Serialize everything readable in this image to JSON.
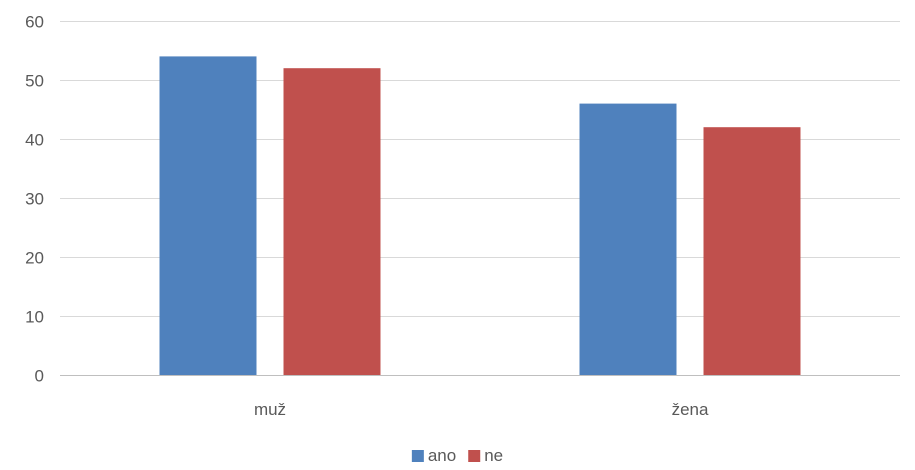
{
  "chart_data": {
    "type": "bar",
    "categories": [
      "muž",
      "žena"
    ],
    "series": [
      {
        "name": "ano",
        "color": "#4f81bd",
        "values": [
          54,
          46
        ]
      },
      {
        "name": "ne",
        "color": "#c0504d",
        "values": [
          52,
          42
        ]
      }
    ],
    "title": "",
    "xlabel": "",
    "ylabel": "",
    "ylim": [
      0,
      60
    ],
    "yticks": [
      0,
      10,
      20,
      30,
      40,
      50,
      60
    ],
    "grid": true,
    "legend": "bottom-center"
  }
}
